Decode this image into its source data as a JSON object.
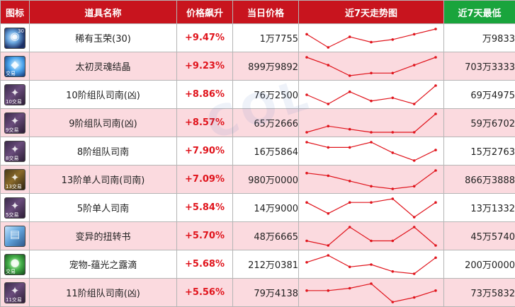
{
  "header": {
    "col_icon": "图标",
    "col_name": "道具名称",
    "col_rise": "价格飙升",
    "col_price": "当日价格",
    "col_trend": "近7天走势图",
    "col_low": "近7天最低"
  },
  "colors": {
    "header_red": "#c8141e",
    "header_green": "#19a43c",
    "row_pink": "#fbdadf",
    "rise_red": "#e0141c",
    "trend_line": "#e0141c"
  },
  "rows": [
    {
      "icon": "rare-jade-icon",
      "icon_num": "30",
      "icon_tag": "",
      "name": "稀有玉荣(30)",
      "rise": "+9.47%",
      "price": "1万7755",
      "low": "万9833",
      "trend": [
        6,
        1,
        5,
        3,
        4,
        6,
        8
      ]
    },
    {
      "icon": "soul-crystal-icon",
      "icon_num": "",
      "icon_tag": "交易",
      "name": "太初灵魂结晶",
      "rise": "+9.23%",
      "price": "899万9892",
      "low": "703万3333",
      "trend": [
        8,
        5,
        1,
        2,
        2,
        5,
        8
      ]
    },
    {
      "icon": "map-compass-icon",
      "icon_num": "",
      "icon_tag": "10交易",
      "name": "10阶组队司南(凶)",
      "rise": "+8.86%",
      "price": "76万2500",
      "low": "69万4975",
      "trend": [
        5,
        2,
        6,
        3,
        4,
        2,
        8
      ]
    },
    {
      "icon": "map-compass-icon",
      "icon_num": "",
      "icon_tag": "9交易",
      "name": "9阶组队司南(凶)",
      "rise": "+8.57%",
      "price": "65万2666",
      "low": "59万6702",
      "trend": [
        2,
        4,
        3,
        2,
        2,
        2,
        8
      ]
    },
    {
      "icon": "map-compass-icon",
      "icon_num": "",
      "icon_tag": "8交易",
      "name": "8阶组队司南",
      "rise": "+7.90%",
      "price": "16万5864",
      "low": "15万2763",
      "trend": [
        8,
        6,
        6,
        8,
        4,
        1,
        5
      ]
    },
    {
      "icon": "map-compass-icon-gold",
      "icon_num": "",
      "icon_tag": "13交易",
      "name": "13阶单人司南(司南)",
      "rise": "+7.09%",
      "price": "980万0000",
      "low": "866万3888",
      "trend": [
        7,
        6,
        4,
        2,
        1,
        2,
        8
      ]
    },
    {
      "icon": "map-compass-icon",
      "icon_num": "",
      "icon_tag": "5交易",
      "name": "5阶单人司南",
      "rise": "+5.84%",
      "price": "14万9000",
      "low": "13万1332",
      "trend": [
        6,
        3,
        6,
        6,
        7,
        2,
        6
      ]
    },
    {
      "icon": "book-icon",
      "icon_num": "",
      "icon_tag": "",
      "name": "变异的扭转书",
      "rise": "+5.70%",
      "price": "48万6665",
      "low": "45万5740",
      "trend": [
        4,
        3,
        7,
        4,
        4,
        7,
        3
      ]
    },
    {
      "icon": "pet-dew-icon",
      "icon_num": "",
      "icon_tag": "交易",
      "name": "宠物-蕴光之露滴",
      "rise": "+5.68%",
      "price": "212万0381",
      "low": "200万0000",
      "trend": [
        6,
        9,
        4,
        5,
        2,
        1,
        8
      ]
    },
    {
      "icon": "map-compass-icon",
      "icon_num": "",
      "icon_tag": "11交易",
      "name": "11阶组队司南(凶)",
      "rise": "+5.56%",
      "price": "79万4138",
      "low": "73万5832",
      "trend": [
        6,
        6,
        7,
        9,
        1,
        3,
        6
      ]
    }
  ]
}
